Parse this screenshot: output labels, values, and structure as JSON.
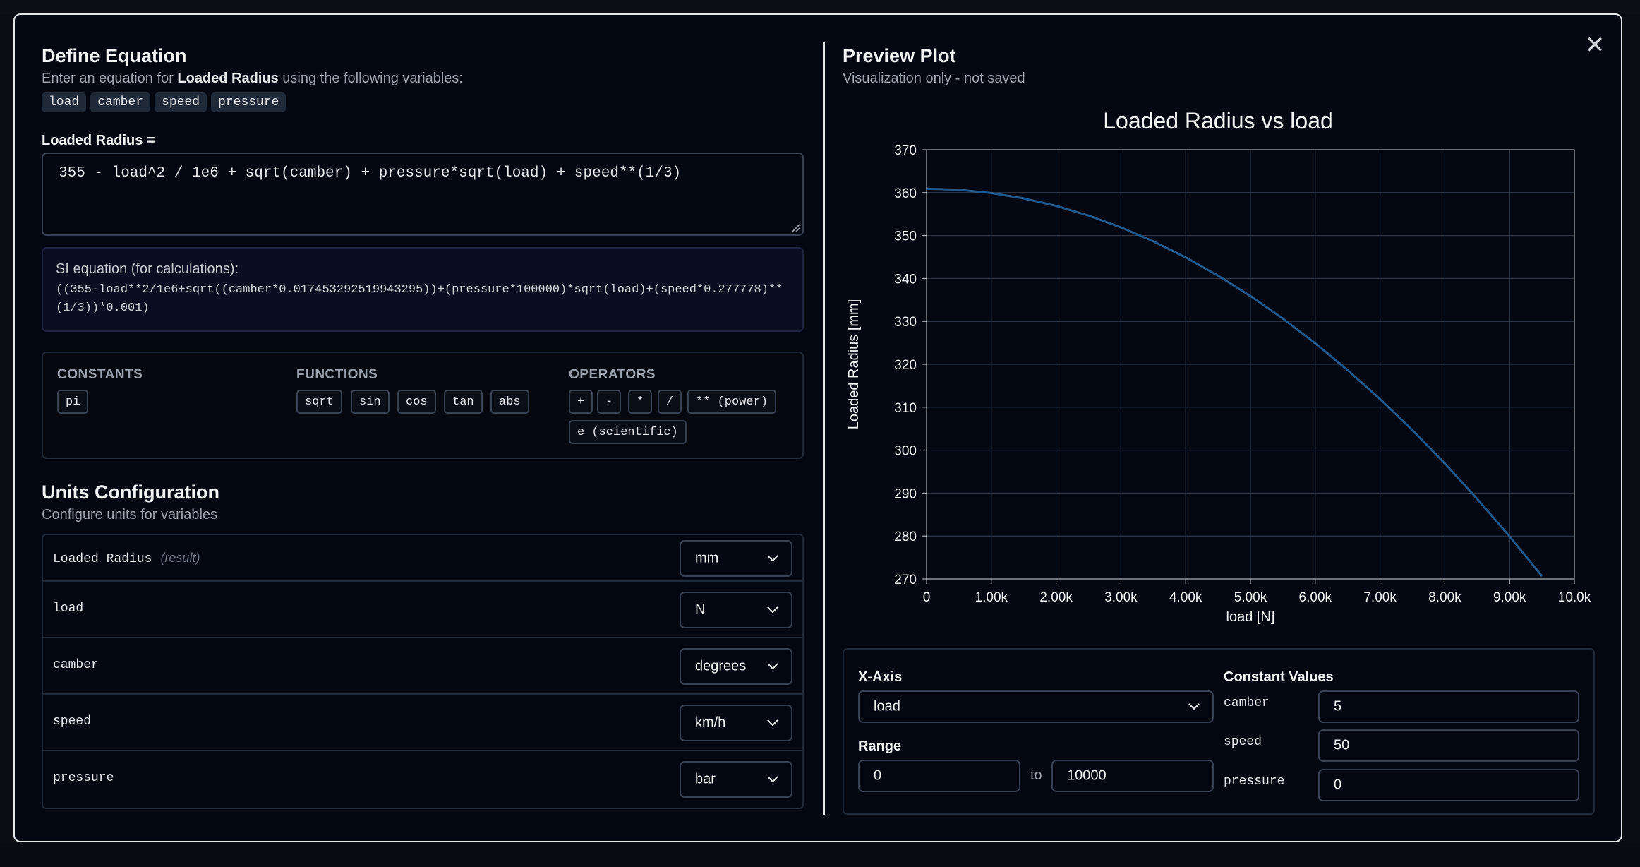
{
  "equation_panel": {
    "title": "Define Equation",
    "subtitle_prefix": "Enter an equation for ",
    "subtitle_target": "Loaded Radius",
    "subtitle_suffix": " using the following variables:",
    "variables": [
      "load",
      "camber",
      "speed",
      "pressure"
    ],
    "equation_label": "Loaded Radius =",
    "equation_value": "355 - load^2 / 1e6 + sqrt(camber) + pressure*sqrt(load) + speed**(1/3)",
    "si_title": "SI equation (for calculations):",
    "si_equation": "((355-load**2/1e6+sqrt((camber*0.017453292519943295))+(pressure*100000)*sqrt(load)+(speed*0.277778)**(1/3))*0.001)"
  },
  "reference": {
    "constants_title": "CONSTANTS",
    "constants": [
      "pi"
    ],
    "functions_title": "FUNCTIONS",
    "functions": [
      "sqrt",
      "sin",
      "cos",
      "tan",
      "abs"
    ],
    "operators_title": "OPERATORS",
    "operators": [
      "+",
      "-",
      "*",
      "/",
      "** (power)",
      "e (scientific)"
    ]
  },
  "units": {
    "title": "Units Configuration",
    "subtitle": "Configure units for variables",
    "rows": [
      {
        "name": "Loaded Radius",
        "hint": "(result)",
        "unit": "mm"
      },
      {
        "name": "load",
        "hint": "",
        "unit": "N"
      },
      {
        "name": "camber",
        "hint": "",
        "unit": "degrees"
      },
      {
        "name": "speed",
        "hint": "",
        "unit": "km/h"
      },
      {
        "name": "pressure",
        "hint": "",
        "unit": "bar"
      }
    ]
  },
  "preview": {
    "title": "Preview Plot",
    "subtitle": "Visualization only - not saved",
    "xaxis_label": "X-Axis",
    "xaxis_value": "load",
    "range_label": "Range",
    "range_from": "0",
    "range_to_label": "to",
    "range_to": "10000",
    "constants_label": "Constant Values",
    "constants": [
      {
        "name": "camber",
        "value": "5"
      },
      {
        "name": "speed",
        "value": "50"
      },
      {
        "name": "pressure",
        "value": "0"
      }
    ]
  },
  "chart_data": {
    "type": "line",
    "title": "Loaded Radius vs load",
    "xlabel": "load [N]",
    "ylabel": "Loaded Radius [mm]",
    "xlim": [
      0,
      10000
    ],
    "ylim": [
      270,
      370
    ],
    "xticks": [
      0,
      1000,
      2000,
      3000,
      4000,
      5000,
      6000,
      7000,
      8000,
      9000,
      10000
    ],
    "xtick_labels": [
      "0",
      "1.00k",
      "2.00k",
      "3.00k",
      "4.00k",
      "5.00k",
      "6.00k",
      "7.00k",
      "8.00k",
      "9.00k",
      "10.0k"
    ],
    "yticks": [
      270,
      280,
      290,
      300,
      310,
      320,
      330,
      340,
      350,
      360,
      370
    ],
    "grid": true,
    "color": "#1f5a8f",
    "series": [
      {
        "x": [
          0,
          500,
          1000,
          1500,
          2000,
          2500,
          3000,
          3500,
          4000,
          4500,
          5000,
          5500,
          6000,
          6500,
          7000,
          7500,
          8000,
          8500,
          9000,
          9500
        ],
        "y": [
          360.9,
          360.65,
          359.9,
          358.65,
          356.9,
          354.65,
          351.9,
          348.65,
          344.9,
          340.65,
          335.9,
          330.65,
          324.9,
          318.65,
          311.9,
          304.65,
          296.9,
          288.65,
          279.9,
          270.65
        ]
      }
    ]
  },
  "colors": {
    "background": "#030712",
    "border": "#374151",
    "line": "#1f5a8f"
  },
  "icons": {
    "close": "close-icon",
    "chevron": "chevron-down-icon"
  }
}
